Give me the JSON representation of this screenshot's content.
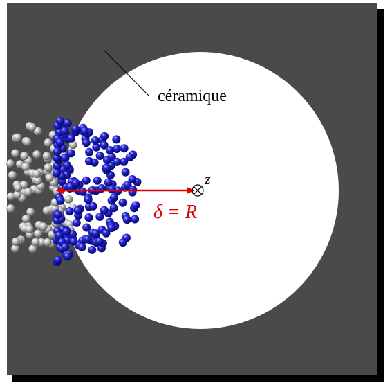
{
  "labels": {
    "material": "céramique",
    "distance": "δ = R",
    "axis": "z"
  }
}
